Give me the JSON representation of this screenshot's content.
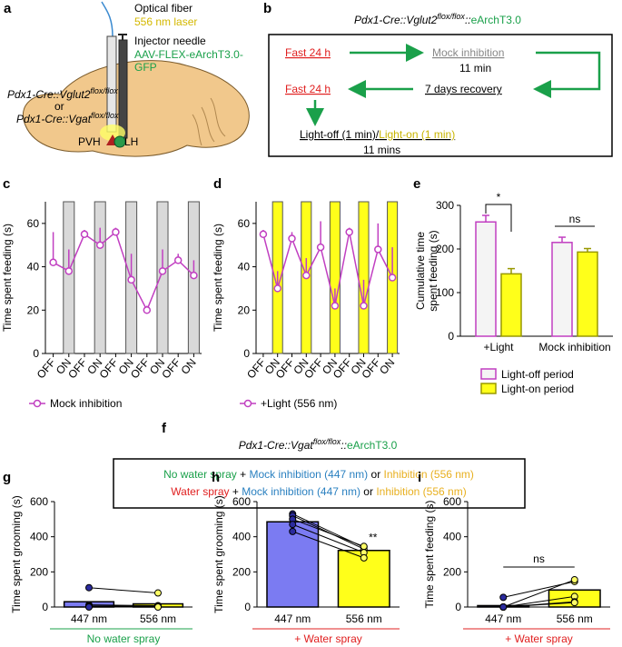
{
  "a": {
    "panel": "a",
    "fiber": "Optical fiber",
    "laser": "556 nm laser",
    "needle": "Injector needle",
    "virus": [
      "AAV-FLEX-eArchT3.0-",
      "GFP"
    ],
    "genotype1": {
      "base": "Pdx1-Cre::Vglut2",
      "sup": "flox/flox"
    },
    "or": "or",
    "genotype2": {
      "base": "Pdx1-Cre::Vgat",
      "sup": "flox/flox"
    },
    "pvh": "PVH",
    "lh": "LH"
  },
  "b": {
    "panel": "b",
    "title": {
      "base": "Pdx1-Cre::Vglut2",
      "sup": "flox/flox",
      "sep": "::",
      "tail": "eArchT3.0"
    },
    "fast1": "Fast 24 h",
    "mock": "Mock inhibition",
    "min1": "11 min",
    "recovery": "7 days recovery",
    "fast2": "Fast 24 h",
    "light_off": "Light-off (1 min)/",
    "light_on": "Light-on (1 min)",
    "min2": "11 mins"
  },
  "f": {
    "panel": "f",
    "title": {
      "base": "Pdx1-Cre::Vgat",
      "sup": "flox/flox",
      "sep": "::",
      "tail": "eArchT3.0"
    },
    "row1": [
      "No water spray",
      " + ",
      "Mock inhibition (447 nm)",
      " or ",
      "Inhibition (556 nm)"
    ],
    "row2": [
      "Water spray",
      " + ",
      "Mock inhibition (447 nm)",
      " or ",
      "Inhibition (556 nm)"
    ]
  },
  "chart_data": [
    {
      "type": "line",
      "panel": "c",
      "categories": [
        "OFF",
        "ON",
        "OFF",
        "ON",
        "OFF",
        "ON",
        "OFF",
        "ON",
        "OFF",
        "ON"
      ],
      "shaded": [
        false,
        true,
        false,
        true,
        false,
        true,
        false,
        true,
        false,
        true
      ],
      "shade_color": "#d9d9d9",
      "series": [
        {
          "name": "Mock inhibition",
          "color": "#c13fc1",
          "values": [
            42,
            38,
            55,
            50,
            56,
            34,
            20,
            38,
            43,
            36
          ],
          "errors": [
            14,
            10,
            2,
            8,
            2,
            12,
            2,
            10,
            3,
            7
          ]
        }
      ],
      "ylabel": "Time spent feeding (s)",
      "ylim": [
        0,
        70
      ],
      "yticks": [
        0,
        20,
        40,
        60
      ]
    },
    {
      "type": "line",
      "panel": "d",
      "categories": [
        "OFF",
        "ON",
        "OFF",
        "ON",
        "OFF",
        "ON",
        "OFF",
        "ON",
        "OFF",
        "ON"
      ],
      "shaded": [
        false,
        true,
        false,
        true,
        false,
        true,
        false,
        true,
        false,
        true
      ],
      "shade_color": "#ffff1a",
      "series": [
        {
          "name": "+Light (556 nm)",
          "color": "#c13fc1",
          "values": [
            55,
            30,
            53,
            36,
            49,
            22,
            56,
            22,
            48,
            35
          ],
          "errors": [
            2,
            8,
            3,
            8,
            12,
            8,
            2,
            12,
            12,
            14
          ]
        }
      ],
      "ylabel": "Time spent feeding (s)",
      "ylim": [
        0,
        70
      ],
      "yticks": [
        0,
        20,
        40,
        60
      ]
    },
    {
      "type": "bar",
      "panel": "e",
      "categories": [
        "+Light",
        "Mock inhibition"
      ],
      "series": [
        {
          "name": "Light-off period",
          "color": "#f4f4f4",
          "edgecolor": "#c13fc1",
          "values": [
            262,
            215
          ],
          "errors": [
            15,
            12
          ]
        },
        {
          "name": "Light-on period",
          "color": "#ffff1a",
          "edgecolor": "#999900",
          "values": [
            143,
            193
          ],
          "errors": [
            12,
            8
          ]
        }
      ],
      "bracket_labels": [
        "*",
        "ns"
      ],
      "ylabel": [
        "Cumulative time",
        "spent feeding (s)"
      ],
      "ylim": [
        0,
        300
      ],
      "yticks": [
        0,
        100,
        200,
        300
      ]
    },
    {
      "type": "paired",
      "panel": "g",
      "categories": [
        "447 nm",
        "556 nm"
      ],
      "colors": [
        "#7b7bf2",
        "#ffff1a"
      ],
      "point_colors": [
        "#2b2b9e",
        "#ffff66"
      ],
      "values": [
        30,
        18
      ],
      "subjects": [
        [
          110,
          80
        ],
        [
          12,
          8
        ],
        [
          6,
          4
        ],
        [
          2,
          2
        ],
        [
          0,
          0
        ]
      ],
      "annotations": [
        null,
        null
      ],
      "ylabel": "Time spent grooming (s)",
      "xlabel": "No water spray",
      "xlabel_color": "#1aa04a",
      "ylim": [
        0,
        600
      ],
      "yticks": [
        0,
        200,
        400,
        600
      ]
    },
    {
      "type": "paired",
      "panel": "h",
      "categories": [
        "447 nm",
        "556 nm"
      ],
      "colors": [
        "#7b7bf2",
        "#ffff1a"
      ],
      "point_colors": [
        "#2b2b9e",
        "#ffff66"
      ],
      "values": [
        485,
        322
      ],
      "subjects": [
        [
          530,
          340
        ],
        [
          520,
          330
        ],
        [
          500,
          345
        ],
        [
          470,
          310
        ],
        [
          430,
          280
        ]
      ],
      "annotations": [
        null,
        "**"
      ],
      "ylabel": "Time spent grooming (s)",
      "xlabel": "+ Water spray",
      "xlabel_color": "#e02020",
      "ylim": [
        0,
        600
      ],
      "yticks": [
        0,
        200,
        400,
        600
      ]
    },
    {
      "type": "paired",
      "panel": "i",
      "categories": [
        "447 nm",
        "556 nm"
      ],
      "colors": [
        "#7b7bf2",
        "#ffff1a"
      ],
      "point_colors": [
        "#2b2b9e",
        "#ffff66"
      ],
      "values": [
        8,
        97
      ],
      "subjects": [
        [
          55,
          145
        ],
        [
          0,
          155
        ],
        [
          0,
          60
        ],
        [
          0,
          30
        ],
        [
          0,
          25
        ]
      ],
      "bracket_label": "ns",
      "ylabel": "Time spent feeding (s)",
      "xlabel": "+ Water spray",
      "xlabel_color": "#e02020",
      "ylim": [
        0,
        600
      ],
      "yticks": [
        0,
        200,
        400,
        600
      ]
    }
  ]
}
